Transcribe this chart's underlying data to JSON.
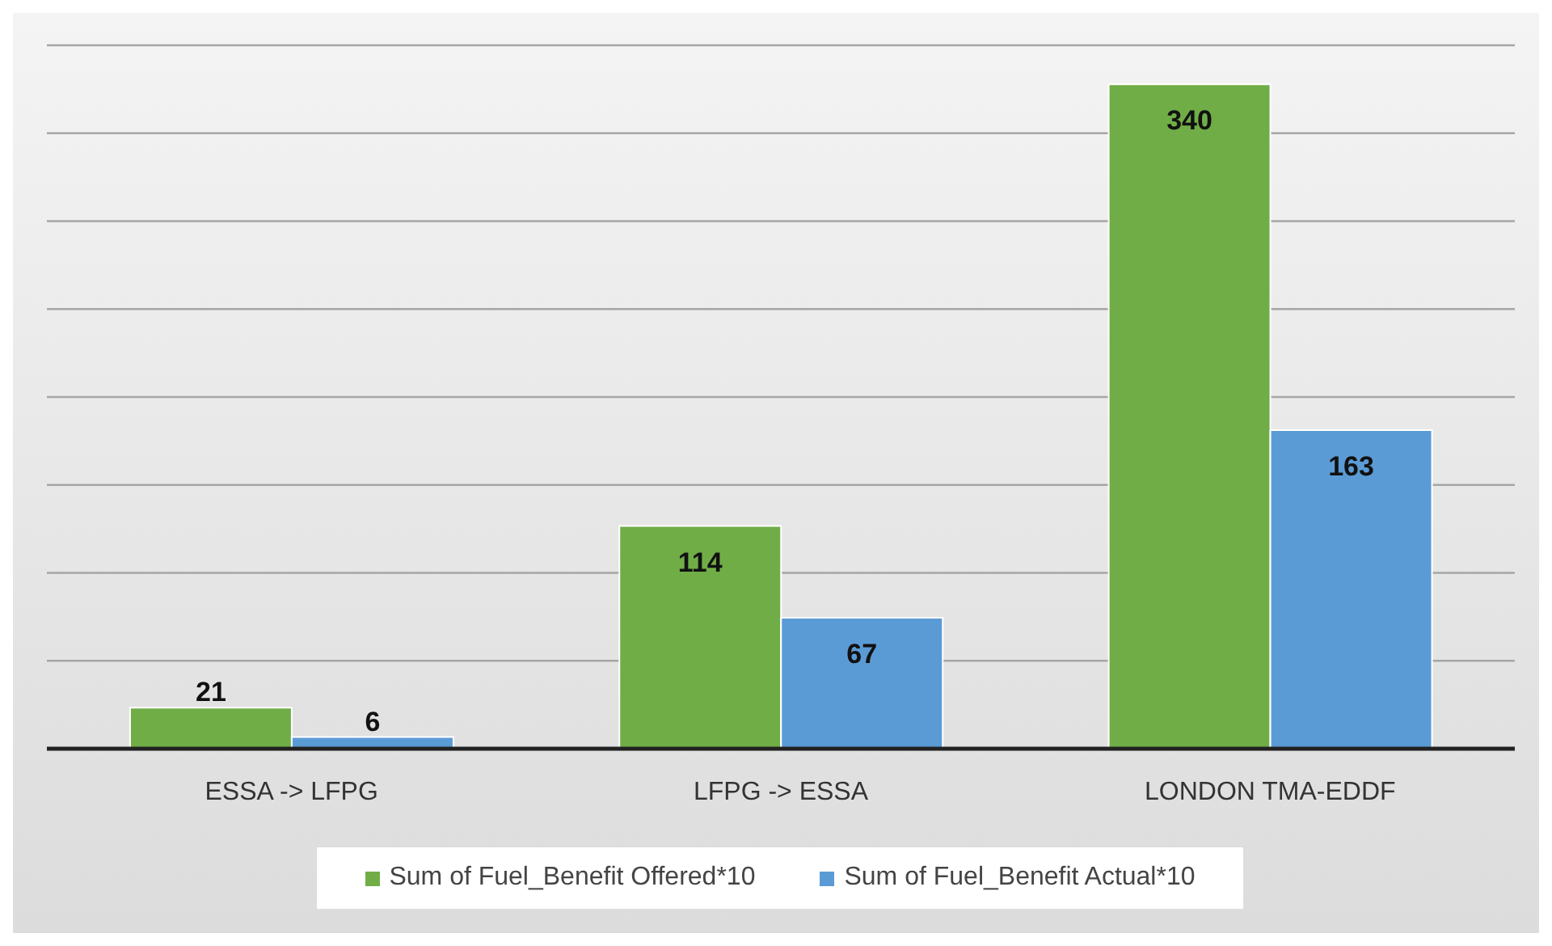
{
  "chart_data": {
    "type": "bar",
    "categories": [
      "ESSA -> LFPG",
      "LFPG -> ESSA",
      "LONDON TMA-EDDF"
    ],
    "series": [
      {
        "name": "Sum of Fuel_Benefit Offered*10",
        "color": "#70ad47",
        "values": [
          21,
          114,
          340
        ]
      },
      {
        "name": "Sum of Fuel_Benefit Actual*10",
        "color": "#5b9bd5",
        "values": [
          6,
          67,
          163
        ]
      }
    ],
    "grid": "y",
    "tick_labels": "x",
    "data_labels": true,
    "legend": "bottom"
  }
}
